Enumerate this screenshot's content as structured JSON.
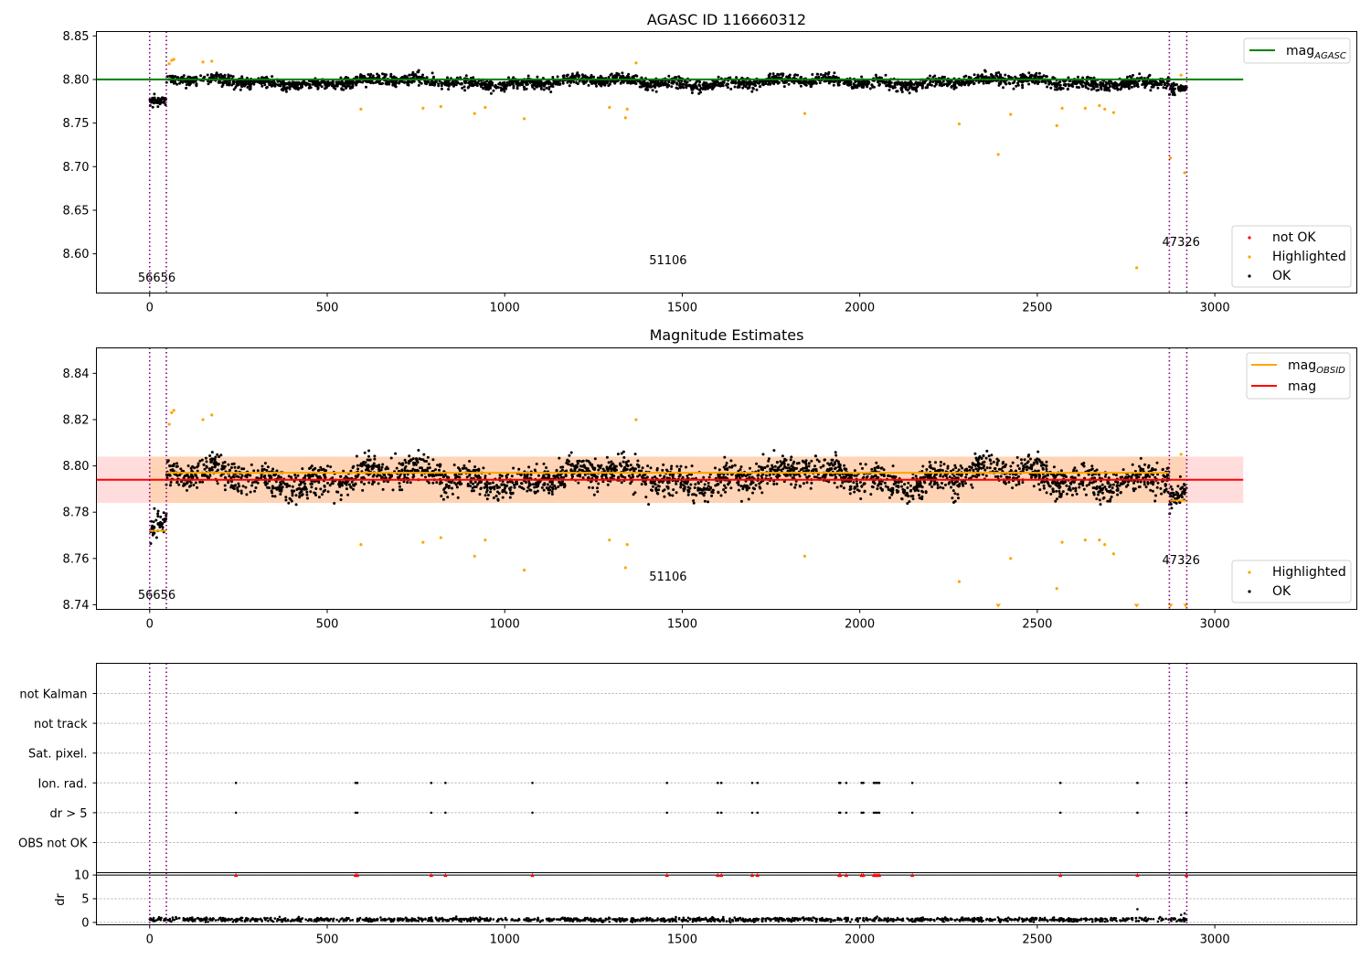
{
  "chart_data": [
    {
      "type": "scatter",
      "title": "AGASC ID 116660312",
      "xlim": [
        -150,
        3400
      ],
      "ylim": [
        8.555,
        8.855
      ],
      "xticks": [
        0,
        500,
        1000,
        1500,
        2000,
        2500,
        3000
      ],
      "yticks": [
        8.6,
        8.65,
        8.7,
        8.75,
        8.8,
        8.85
      ],
      "ytick_labels": [
        "8.60",
        "8.65",
        "8.70",
        "8.75",
        "8.80",
        "8.85"
      ],
      "obs_boundaries": [
        0,
        47,
        2872,
        2921
      ],
      "obsid_labels": [
        {
          "text": "56656",
          "x": 20,
          "y": 8.568
        },
        {
          "text": "51106",
          "x": 1460,
          "y": 8.588
        },
        {
          "text": "47326",
          "x": 2905,
          "y": 8.609
        }
      ],
      "reference_line": {
        "name": "mag_AGASC",
        "label_base": "mag",
        "label_sub": "AGASC",
        "value": 8.8,
        "x_range": [
          -150,
          3080
        ],
        "color": "#008000"
      },
      "ok_band": {
        "segments": [
          [
            0,
            47,
            8.773
          ],
          [
            47,
            2872,
            8.797
          ],
          [
            2872,
            2921,
            8.787
          ]
        ],
        "spread": 0.012,
        "count": 2900
      },
      "highlighted": [
        {
          "x": 55,
          "y": 8.818
        },
        {
          "x": 62,
          "y": 8.822
        },
        {
          "x": 68,
          "y": 8.823
        },
        {
          "x": 150,
          "y": 8.82
        },
        {
          "x": 175,
          "y": 8.821
        },
        {
          "x": 595,
          "y": 8.766
        },
        {
          "x": 770,
          "y": 8.767
        },
        {
          "x": 820,
          "y": 8.769
        },
        {
          "x": 915,
          "y": 8.761
        },
        {
          "x": 945,
          "y": 8.768
        },
        {
          "x": 1055,
          "y": 8.755
        },
        {
          "x": 1295,
          "y": 8.768
        },
        {
          "x": 1340,
          "y": 8.756
        },
        {
          "x": 1345,
          "y": 8.766
        },
        {
          "x": 1370,
          "y": 8.819
        },
        {
          "x": 1845,
          "y": 8.761
        },
        {
          "x": 2280,
          "y": 8.749
        },
        {
          "x": 2390,
          "y": 8.714
        },
        {
          "x": 2425,
          "y": 8.76
        },
        {
          "x": 2555,
          "y": 8.747
        },
        {
          "x": 2570,
          "y": 8.767
        },
        {
          "x": 2635,
          "y": 8.767
        },
        {
          "x": 2675,
          "y": 8.77
        },
        {
          "x": 2690,
          "y": 8.766
        },
        {
          "x": 2715,
          "y": 8.762
        },
        {
          "x": 2780,
          "y": 8.584
        },
        {
          "x": 2875,
          "y": 8.71
        },
        {
          "x": 2905,
          "y": 8.805
        },
        {
          "x": 2915,
          "y": 8.693
        }
      ],
      "legend": {
        "position": "upper right / lower right",
        "items": [
          "not OK",
          "Highlighted",
          "OK"
        ]
      }
    },
    {
      "type": "scatter",
      "title": "Magnitude Estimates",
      "xlim": [
        -150,
        3400
      ],
      "ylim": [
        8.738,
        8.851
      ],
      "xticks": [
        0,
        500,
        1000,
        1500,
        2000,
        2500,
        3000
      ],
      "yticks": [
        8.74,
        8.76,
        8.78,
        8.8,
        8.82,
        8.84
      ],
      "ytick_labels": [
        "8.74",
        "8.76",
        "8.78",
        "8.80",
        "8.82",
        "8.84"
      ],
      "obs_boundaries": [
        0,
        47,
        2872,
        2921
      ],
      "obsid_labels": [
        {
          "text": "56656",
          "x": 20,
          "y": 8.7425
        },
        {
          "text": "51106",
          "x": 1460,
          "y": 8.7505
        },
        {
          "text": "47326",
          "x": 2905,
          "y": 8.7575
        }
      ],
      "mag_line": {
        "name": "mag",
        "value": 8.794,
        "band": [
          8.784,
          8.804
        ],
        "x_range": [
          -150,
          3080
        ],
        "color": "#ff0000"
      },
      "mag_obsid": {
        "name": "mag_OBSID",
        "label_base": "mag",
        "label_sub": "OBSID",
        "segments": [
          {
            "x0": 0,
            "x1": 47,
            "y": 8.772
          },
          {
            "x0": 47,
            "x1": 2872,
            "y": 8.797
          },
          {
            "x0": 2872,
            "x1": 2921,
            "y": 8.785
          }
        ],
        "color": "#ffa500"
      },
      "ok_band": {
        "segments": [
          [
            0,
            47,
            8.773
          ],
          [
            47,
            2872,
            8.795
          ],
          [
            2872,
            2921,
            8.785
          ]
        ],
        "spread": 0.012,
        "count": 2900
      },
      "highlighted": [
        {
          "x": 55,
          "y": 8.818
        },
        {
          "x": 62,
          "y": 8.823
        },
        {
          "x": 68,
          "y": 8.824
        },
        {
          "x": 150,
          "y": 8.82
        },
        {
          "x": 175,
          "y": 8.822
        },
        {
          "x": 595,
          "y": 8.766
        },
        {
          "x": 770,
          "y": 8.767
        },
        {
          "x": 820,
          "y": 8.769
        },
        {
          "x": 915,
          "y": 8.761
        },
        {
          "x": 945,
          "y": 8.768
        },
        {
          "x": 1055,
          "y": 8.755
        },
        {
          "x": 1295,
          "y": 8.768
        },
        {
          "x": 1340,
          "y": 8.756
        },
        {
          "x": 1345,
          "y": 8.766
        },
        {
          "x": 1370,
          "y": 8.82
        },
        {
          "x": 1845,
          "y": 8.761
        },
        {
          "x": 2280,
          "y": 8.75
        },
        {
          "x": 2425,
          "y": 8.76
        },
        {
          "x": 2555,
          "y": 8.747
        },
        {
          "x": 2570,
          "y": 8.767
        },
        {
          "x": 2635,
          "y": 8.768
        },
        {
          "x": 2675,
          "y": 8.768
        },
        {
          "x": 2690,
          "y": 8.766
        },
        {
          "x": 2715,
          "y": 8.762
        },
        {
          "x": 2905,
          "y": 8.805
        }
      ],
      "clipped_low": [
        {
          "x": 2390
        },
        {
          "x": 2780
        },
        {
          "x": 2875
        },
        {
          "x": 2918
        }
      ],
      "legend": {
        "position": "lower right",
        "items": [
          "Highlighted",
          "OK"
        ]
      },
      "legend_lines": {
        "position": "upper right",
        "items": [
          "mag_OBSID",
          "mag"
        ]
      }
    },
    {
      "type": "scatter",
      "title": "",
      "xlim": [
        -150,
        3400
      ],
      "flag_rows": [
        "not Kalman",
        "not track",
        "Sat. pixel.",
        "Ion. rad.",
        "dr > 5",
        "OBS not OK"
      ],
      "flag_events": {
        "Ion. rad.": [
          243,
          580,
          585,
          793,
          833,
          1078,
          1457,
          1600,
          1610,
          1697,
          1712,
          1942,
          1945,
          1962,
          2005,
          2010,
          2040,
          2045,
          2050,
          2055,
          2148,
          2565,
          2782,
          2920
        ],
        "dr > 5": [
          243,
          580,
          585,
          793,
          833,
          1078,
          1457,
          1600,
          1610,
          1697,
          1712,
          1942,
          1945,
          1962,
          2005,
          2010,
          2040,
          2045,
          2050,
          2055,
          2148,
          2565,
          2782,
          2920
        ]
      },
      "obs_boundaries": [
        0,
        47,
        2872,
        2921
      ]
    },
    {
      "type": "scatter",
      "title": "",
      "ylabel": "dr",
      "xlim": [
        -150,
        3400
      ],
      "ylim": [
        -0.5,
        10.5
      ],
      "xticks": [
        0,
        500,
        1000,
        1500,
        2000,
        2500,
        3000
      ],
      "yticks": [
        0,
        5,
        10
      ],
      "ytick_labels": [
        "0",
        "5",
        "10"
      ],
      "dr_clipped_at": 10,
      "dr_clipped_x": [
        243,
        580,
        585,
        793,
        833,
        1078,
        1457,
        1600,
        1610,
        1697,
        1712,
        1942,
        1945,
        1962,
        2005,
        2010,
        2040,
        2045,
        2050,
        2055,
        2148,
        2565,
        2782,
        2920
      ],
      "dr_typical": 0.6,
      "dr_outliers": [
        {
          "x": 2782,
          "y": 2.8
        },
        {
          "x": 2905,
          "y": 1.6
        },
        {
          "x": 2915,
          "y": 1.9
        }
      ],
      "obs_boundaries": [
        0,
        47,
        2872,
        2921
      ]
    }
  ],
  "colors": {
    "ok": "#000000",
    "highlighted": "#ffa500",
    "not_ok": "#ff0000",
    "agasc_line": "#008000",
    "mag_line": "#ff0000",
    "band": "#ffb3b3",
    "boundary": "#800080"
  }
}
